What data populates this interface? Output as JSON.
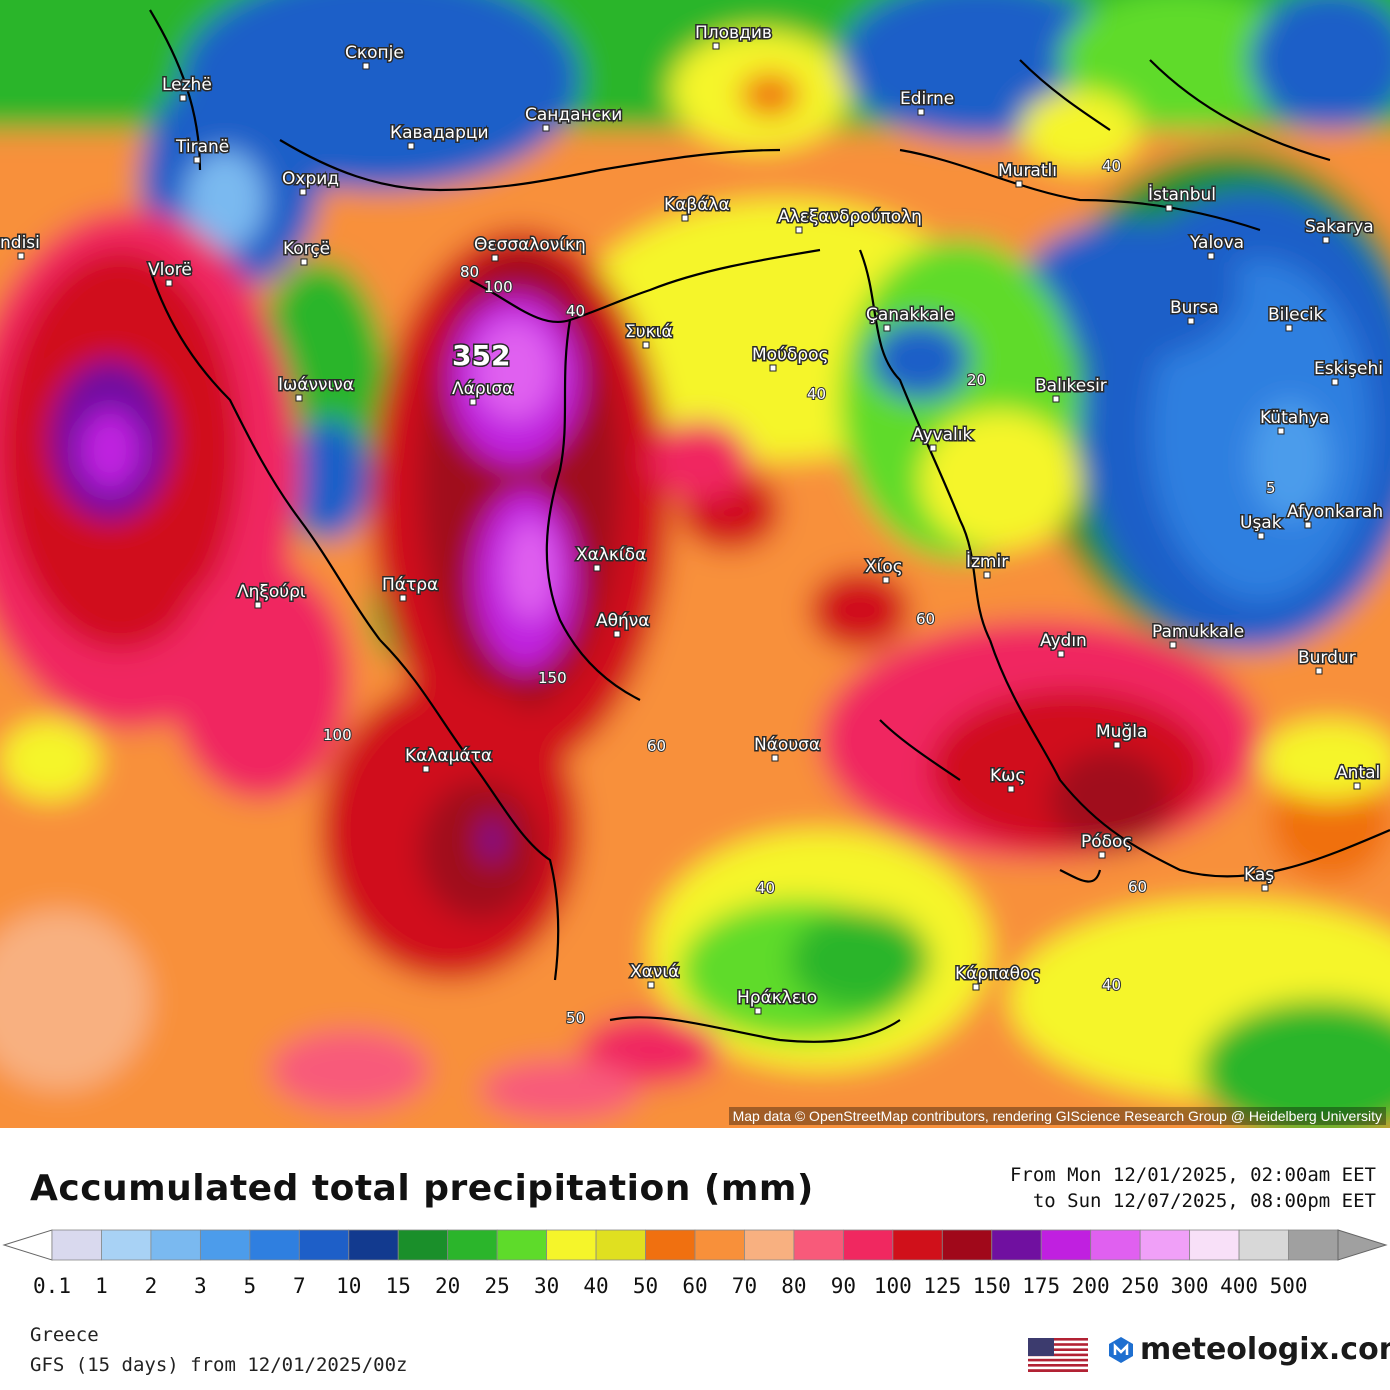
{
  "map": {
    "labels": [
      {
        "text": "Скопје",
        "name": "city-skopje"
      },
      {
        "text": "Пловдив",
        "name": "city-plovdiv"
      },
      {
        "text": "Lezhë",
        "name": "city-lezhe"
      },
      {
        "text": "Tiranë",
        "name": "city-tirane"
      },
      {
        "text": "Кавадарци",
        "name": "city-kavadarci"
      },
      {
        "text": "Сандански",
        "name": "city-sandanski"
      },
      {
        "text": "Edirne",
        "name": "city-edirne"
      },
      {
        "text": "Охрид",
        "name": "city-ohrid"
      },
      {
        "text": "Muratlı",
        "name": "city-muratli"
      },
      {
        "text": "İstanbul",
        "name": "city-istanbul"
      },
      {
        "text": "Sakarya",
        "name": "city-sakarya"
      },
      {
        "text": "Korçë",
        "name": "city-korce"
      },
      {
        "text": "Καβάλα",
        "name": "city-kavala"
      },
      {
        "text": "Αλεξανδρούπολη",
        "name": "city-alexandroupoli"
      },
      {
        "text": "Yalova",
        "name": "city-yalova"
      },
      {
        "text": "ndisi",
        "name": "city-brindisi"
      },
      {
        "text": "Vlorë",
        "name": "city-vlore"
      },
      {
        "text": "Θεσσαλονίκη",
        "name": "city-thessaloniki"
      },
      {
        "text": "Bursa",
        "name": "city-bursa"
      },
      {
        "text": "Bilecik",
        "name": "city-bilecik"
      },
      {
        "text": "Συκιά",
        "name": "city-sykia"
      },
      {
        "text": "Çanakkale",
        "name": "city-canakkale"
      },
      {
        "text": "Μούδρος",
        "name": "city-moudros"
      },
      {
        "text": "Ιωάννινα",
        "name": "city-ioannina"
      },
      {
        "text": "Λάρισα",
        "name": "city-larisa"
      },
      {
        "text": "Balıkesir",
        "name": "city-balikesir"
      },
      {
        "text": "Eskişehi",
        "name": "city-eskisehir"
      },
      {
        "text": "Kütahya",
        "name": "city-kutahya"
      },
      {
        "text": "Ayvalık",
        "name": "city-ayvalik"
      },
      {
        "text": "Uşak",
        "name": "city-usak"
      },
      {
        "text": "Afyonkarah",
        "name": "city-afyonkarahisar"
      },
      {
        "text": "Χαλκίδα",
        "name": "city-chalkida"
      },
      {
        "text": "Χίος",
        "name": "city-chios"
      },
      {
        "text": "İzmir",
        "name": "city-izmir"
      },
      {
        "text": "Ληξούρι",
        "name": "city-lixouri"
      },
      {
        "text": "Πάτρα",
        "name": "city-patra"
      },
      {
        "text": "Αθήνα",
        "name": "city-athina"
      },
      {
        "text": "Pamukkale",
        "name": "city-pamukkale"
      },
      {
        "text": "Aydın",
        "name": "city-aydin"
      },
      {
        "text": "Burdur",
        "name": "city-burdur"
      },
      {
        "text": "Muğla",
        "name": "city-mugla"
      },
      {
        "text": "Νάουσα",
        "name": "city-naousa"
      },
      {
        "text": "Καλαμάτα",
        "name": "city-kalamata"
      },
      {
        "text": "Κως",
        "name": "city-kos"
      },
      {
        "text": "Antal",
        "name": "city-antalya"
      },
      {
        "text": "Ρόδος",
        "name": "city-rodos"
      },
      {
        "text": "Kaş",
        "name": "city-kas"
      },
      {
        "text": "Χανιά",
        "name": "city-chania"
      },
      {
        "text": "Κάρπαθος",
        "name": "city-karpathos"
      },
      {
        "text": "Ηράκλειο",
        "name": "city-irakleio"
      }
    ],
    "contour_labels": [
      "40",
      "80",
      "100",
      "40",
      "40",
      "20",
      "5",
      "60",
      "100",
      "150",
      "60",
      "40",
      "60",
      "40",
      "50"
    ],
    "max_value": "352",
    "attribution": "Map data © OpenStreetMap contributors, rendering GIScience Research Group @ Heidelberg University"
  },
  "legend": {
    "title": "Accumulated total precipitation (mm)",
    "period_line1": "From Mon 12/01/2025, 02:00am EET",
    "period_line2": "to Sun 12/07/2025, 08:00pm EET",
    "scale_colors": [
      "#d9d9ee",
      "#a8d2f5",
      "#7ab9f0",
      "#4c9ceb",
      "#2f7fe0",
      "#1e5fc8",
      "#123a8f",
      "#1a8f2a",
      "#2bb52b",
      "#5edb2a",
      "#f5f52a",
      "#e0e020",
      "#f07010",
      "#f8903a",
      "#f8b080",
      "#f85a7a",
      "#f02860",
      "#d0101a",
      "#a0081a",
      "#7010a0",
      "#c020e0",
      "#e060f0",
      "#f0a0f8",
      "#f8e0f8",
      "#d8d8d8",
      "#a0a0a0"
    ],
    "ticks": [
      "0.1",
      "1",
      "2",
      "3",
      "5",
      "7",
      "10",
      "15",
      "20",
      "25",
      "30",
      "40",
      "50",
      "60",
      "70",
      "80",
      "90",
      "100",
      "125",
      "150",
      "175",
      "200",
      "250",
      "300",
      "400",
      "500"
    ],
    "region": "Greece",
    "model": "GFS (15 days) from 12/01/2025/00z",
    "brand": "meteologix.com"
  }
}
